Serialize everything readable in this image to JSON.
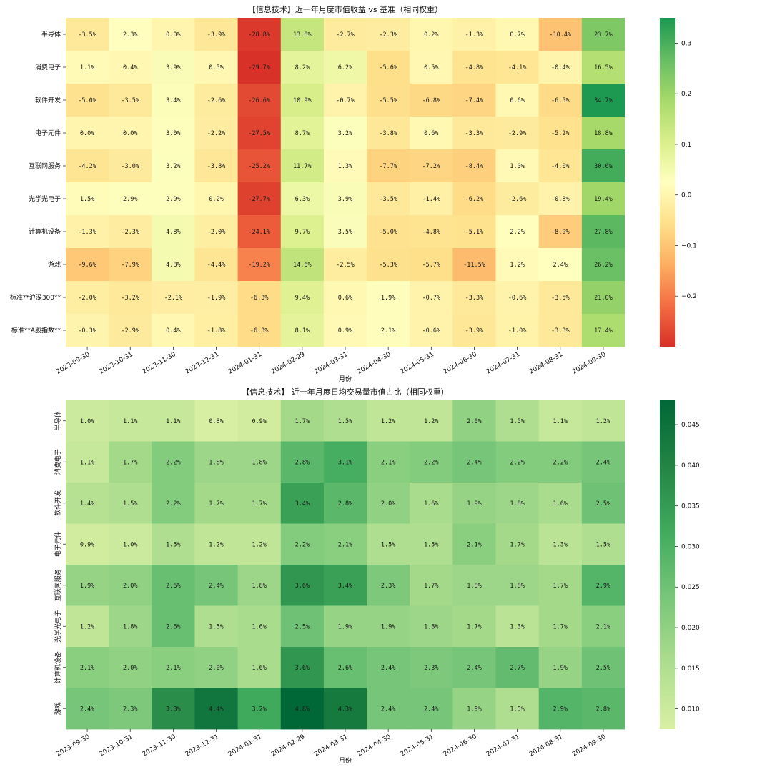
{
  "chart_data": [
    {
      "type": "heatmap",
      "title": "【信息技术】近一年月度市值收益 vs 基准（相同权重）",
      "xlabel": "月份",
      "ylabel": "",
      "x": [
        "2023-09-30",
        "2023-10-31",
        "2023-11-30",
        "2023-12-31",
        "2024-01-31",
        "2024-02-29",
        "2024-03-31",
        "2024-04-30",
        "2024-05-31",
        "2024-06-30",
        "2024-07-31",
        "2024-08-31",
        "2024-09-30"
      ],
      "y": [
        "半导体",
        "消费电子",
        "软件开发",
        "电子元件",
        "互联网服务",
        "光学光电子",
        "计算机设备",
        "游戏",
        "标准**沪深300**",
        "标准**A股指数**"
      ],
      "values": [
        [
          -0.035,
          0.023,
          0.0,
          -0.039,
          -0.288,
          0.138,
          -0.027,
          -0.023,
          0.002,
          -0.013,
          0.007,
          -0.104,
          0.237
        ],
        [
          0.011,
          0.004,
          0.039,
          0.005,
          -0.297,
          0.082,
          0.062,
          -0.056,
          0.005,
          -0.048,
          -0.041,
          -0.004,
          0.165
        ],
        [
          -0.05,
          -0.035,
          0.034,
          -0.026,
          -0.266,
          0.109,
          -0.007,
          -0.055,
          -0.068,
          -0.074,
          0.006,
          -0.065,
          0.347
        ],
        [
          0.0,
          0.0,
          0.03,
          -0.022,
          -0.275,
          0.087,
          0.032,
          -0.038,
          0.006,
          -0.033,
          -0.029,
          -0.052,
          0.188
        ],
        [
          -0.042,
          -0.03,
          0.032,
          -0.038,
          -0.252,
          0.117,
          0.013,
          -0.077,
          -0.072,
          -0.084,
          0.01,
          -0.04,
          0.306
        ],
        [
          0.015,
          0.029,
          0.029,
          0.002,
          -0.277,
          0.063,
          0.039,
          -0.035,
          -0.014,
          -0.062,
          -0.026,
          -0.008,
          0.194
        ],
        [
          -0.013,
          -0.023,
          0.048,
          -0.02,
          -0.241,
          0.097,
          0.035,
          -0.05,
          -0.048,
          -0.051,
          0.022,
          -0.089,
          0.278
        ],
        [
          -0.096,
          -0.079,
          0.048,
          -0.044,
          -0.192,
          0.146,
          -0.025,
          -0.053,
          -0.057,
          -0.115,
          0.012,
          0.024,
          0.262
        ],
        [
          -0.02,
          -0.032,
          -0.021,
          -0.019,
          -0.063,
          0.094,
          0.006,
          0.019,
          -0.007,
          -0.033,
          -0.006,
          -0.035,
          0.21
        ],
        [
          -0.003,
          -0.029,
          0.004,
          -0.018,
          -0.063,
          0.081,
          0.009,
          0.021,
          -0.006,
          -0.039,
          -0.01,
          -0.033,
          0.174
        ]
      ],
      "cell_labels": [
        [
          "-3.5%",
          "2.3%",
          "0.0%",
          "-3.9%",
          "-28.8%",
          "13.8%",
          "-2.7%",
          "-2.3%",
          "0.2%",
          "-1.3%",
          "0.7%",
          "-10.4%",
          "23.7%"
        ],
        [
          "1.1%",
          "0.4%",
          "3.9%",
          "0.5%",
          "-29.7%",
          "8.2%",
          "6.2%",
          "-5.6%",
          "0.5%",
          "-4.8%",
          "-4.1%",
          "-0.4%",
          "16.5%"
        ],
        [
          "-5.0%",
          "-3.5%",
          "3.4%",
          "-2.6%",
          "-26.6%",
          "10.9%",
          "-0.7%",
          "-5.5%",
          "-6.8%",
          "-7.4%",
          "0.6%",
          "-6.5%",
          "34.7%"
        ],
        [
          "0.0%",
          "0.0%",
          "3.0%",
          "-2.2%",
          "-27.5%",
          "8.7%",
          "3.2%",
          "-3.8%",
          "0.6%",
          "-3.3%",
          "-2.9%",
          "-5.2%",
          "18.8%"
        ],
        [
          "-4.2%",
          "-3.0%",
          "3.2%",
          "-3.8%",
          "-25.2%",
          "11.7%",
          "1.3%",
          "-7.7%",
          "-7.2%",
          "-8.4%",
          "1.0%",
          "-4.0%",
          "30.6%"
        ],
        [
          "1.5%",
          "2.9%",
          "2.9%",
          "0.2%",
          "-27.7%",
          "6.3%",
          "3.9%",
          "-3.5%",
          "-1.4%",
          "-6.2%",
          "-2.6%",
          "-0.8%",
          "19.4%"
        ],
        [
          "-1.3%",
          "-2.3%",
          "4.8%",
          "-2.0%",
          "-24.1%",
          "9.7%",
          "3.5%",
          "-5.0%",
          "-4.8%",
          "-5.1%",
          "2.2%",
          "-8.9%",
          "27.8%"
        ],
        [
          "-9.6%",
          "-7.9%",
          "4.8%",
          "-4.4%",
          "-19.2%",
          "14.6%",
          "-2.5%",
          "-5.3%",
          "-5.7%",
          "-11.5%",
          "1.2%",
          "2.4%",
          "26.2%"
        ],
        [
          "-2.0%",
          "-3.2%",
          "-2.1%",
          "-1.9%",
          "-6.3%",
          "9.4%",
          "0.6%",
          "1.9%",
          "-0.7%",
          "-3.3%",
          "-0.6%",
          "-3.5%",
          "21.0%"
        ],
        [
          "-0.3%",
          "-2.9%",
          "0.4%",
          "-1.8%",
          "-6.3%",
          "8.1%",
          "0.9%",
          "2.1%",
          "-0.6%",
          "-3.9%",
          "-1.0%",
          "-3.3%",
          "17.4%"
        ]
      ],
      "colormap": "RdYlGn",
      "vmin": -0.3,
      "vmax": 0.35,
      "colorbar_ticks": [
        0.3,
        0.2,
        0.1,
        0.0,
        -0.1,
        -0.2
      ],
      "colorbar_tick_labels": [
        "0.3",
        "0.2",
        "0.1",
        "0.0",
        "−0.1",
        "−0.2"
      ],
      "colors": [
        "#d73027",
        "#f46d43",
        "#fdae61",
        "#fee08b",
        "#ffffbf",
        "#d9ef8b",
        "#a6d96a",
        "#66bd63",
        "#1a9850"
      ]
    },
    {
      "type": "heatmap",
      "title": "【信息技术】 近一年月度日均交易量市值占比（相同权重）",
      "xlabel": "月份",
      "ylabel": "",
      "x": [
        "2023-09-30",
        "2023-10-31",
        "2023-11-30",
        "2023-12-31",
        "2024-01-31",
        "2024-02-29",
        "2024-03-31",
        "2024-04-30",
        "2024-05-31",
        "2024-06-30",
        "2024-07-31",
        "2024-08-31",
        "2024-09-30"
      ],
      "y": [
        "半导体",
        "消费电子",
        "软件开发",
        "电子元件",
        "互联网服务",
        "光学光电子",
        "计算机设备",
        "游戏"
      ],
      "values": [
        [
          0.01,
          0.011,
          0.011,
          0.008,
          0.009,
          0.017,
          0.015,
          0.012,
          0.012,
          0.02,
          0.015,
          0.011,
          0.012
        ],
        [
          0.011,
          0.017,
          0.022,
          0.018,
          0.018,
          0.028,
          0.031,
          0.021,
          0.022,
          0.024,
          0.022,
          0.022,
          0.024
        ],
        [
          0.014,
          0.015,
          0.022,
          0.017,
          0.017,
          0.034,
          0.028,
          0.02,
          0.016,
          0.019,
          0.018,
          0.016,
          0.025
        ],
        [
          0.009,
          0.01,
          0.015,
          0.012,
          0.012,
          0.022,
          0.021,
          0.015,
          0.015,
          0.021,
          0.017,
          0.013,
          0.015
        ],
        [
          0.019,
          0.02,
          0.026,
          0.024,
          0.018,
          0.036,
          0.034,
          0.023,
          0.017,
          0.018,
          0.018,
          0.017,
          0.029
        ],
        [
          0.012,
          0.018,
          0.026,
          0.015,
          0.016,
          0.025,
          0.019,
          0.019,
          0.018,
          0.017,
          0.013,
          0.017,
          0.021
        ],
        [
          0.021,
          0.02,
          0.021,
          0.02,
          0.016,
          0.036,
          0.026,
          0.024,
          0.023,
          0.024,
          0.027,
          0.019,
          0.025
        ],
        [
          0.024,
          0.023,
          0.038,
          0.044,
          0.032,
          0.048,
          0.043,
          0.024,
          0.024,
          0.019,
          0.015,
          0.029,
          0.028
        ]
      ],
      "cell_labels": [
        [
          "1.0%",
          "1.1%",
          "1.1%",
          "0.8%",
          "0.9%",
          "1.7%",
          "1.5%",
          "1.2%",
          "1.2%",
          "2.0%",
          "1.5%",
          "1.1%",
          "1.2%"
        ],
        [
          "1.1%",
          "1.7%",
          "2.2%",
          "1.8%",
          "1.8%",
          "2.8%",
          "3.1%",
          "2.1%",
          "2.2%",
          "2.4%",
          "2.2%",
          "2.2%",
          "2.4%"
        ],
        [
          "1.4%",
          "1.5%",
          "2.2%",
          "1.7%",
          "1.7%",
          "3.4%",
          "2.8%",
          "2.0%",
          "1.6%",
          "1.9%",
          "1.8%",
          "1.6%",
          "2.5%"
        ],
        [
          "0.9%",
          "1.0%",
          "1.5%",
          "1.2%",
          "1.2%",
          "2.2%",
          "2.1%",
          "1.5%",
          "1.5%",
          "2.1%",
          "1.7%",
          "1.3%",
          "1.5%"
        ],
        [
          "1.9%",
          "2.0%",
          "2.6%",
          "2.4%",
          "1.8%",
          "3.6%",
          "3.4%",
          "2.3%",
          "1.7%",
          "1.8%",
          "1.8%",
          "1.7%",
          "2.9%"
        ],
        [
          "1.2%",
          "1.8%",
          "2.6%",
          "1.5%",
          "1.6%",
          "2.5%",
          "1.9%",
          "1.9%",
          "1.8%",
          "1.7%",
          "1.3%",
          "1.7%",
          "2.1%"
        ],
        [
          "2.1%",
          "2.0%",
          "2.1%",
          "2.0%",
          "1.6%",
          "3.6%",
          "2.6%",
          "2.4%",
          "2.3%",
          "2.4%",
          "2.7%",
          "1.9%",
          "2.5%"
        ],
        [
          "2.4%",
          "2.3%",
          "3.8%",
          "4.4%",
          "3.2%",
          "4.8%",
          "4.3%",
          "2.4%",
          "2.4%",
          "1.9%",
          "1.5%",
          "2.9%",
          "2.8%"
        ]
      ],
      "colormap": "YlGn",
      "vmin": 0.0075,
      "vmax": 0.048,
      "colorbar_ticks": [
        0.045,
        0.04,
        0.035,
        0.03,
        0.025,
        0.02,
        0.015,
        0.01
      ],
      "colorbar_tick_labels": [
        "0.045",
        "0.040",
        "0.035",
        "0.030",
        "0.025",
        "0.020",
        "0.015",
        "0.010"
      ],
      "colors": [
        "#d9f0a3",
        "#addd8e",
        "#78c679",
        "#41ab5d",
        "#238443",
        "#006837"
      ]
    }
  ]
}
